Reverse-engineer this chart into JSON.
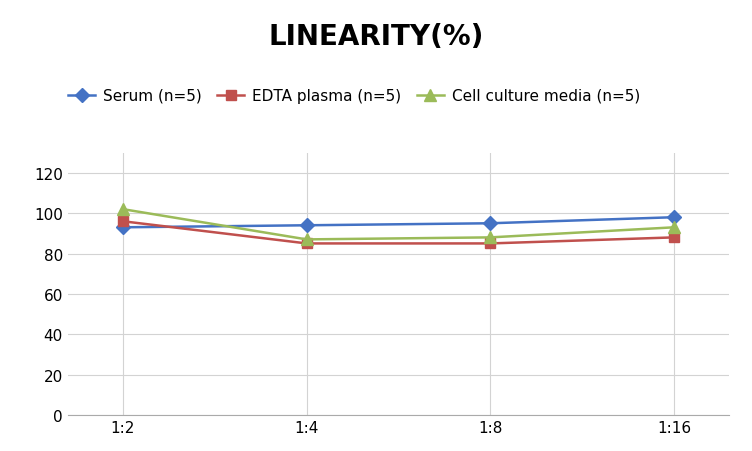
{
  "title": "LINEARITY(%)",
  "x_labels": [
    "1:2",
    "1:4",
    "1:8",
    "1:16"
  ],
  "x_positions": [
    0,
    1,
    2,
    3
  ],
  "series": [
    {
      "label": "Serum (n=5)",
      "values": [
        93,
        94,
        95,
        98
      ],
      "color": "#4472C4",
      "marker": "D",
      "marker_size": 7,
      "linewidth": 1.8
    },
    {
      "label": "EDTA plasma (n=5)",
      "values": [
        96,
        85,
        85,
        88
      ],
      "color": "#C0504D",
      "marker": "s",
      "marker_size": 7,
      "linewidth": 1.8
    },
    {
      "label": "Cell culture media (n=5)",
      "values": [
        102,
        87,
        88,
        93
      ],
      "color": "#9BBB59",
      "marker": "^",
      "marker_size": 8,
      "linewidth": 1.8
    }
  ],
  "ylim": [
    0,
    130
  ],
  "yticks": [
    0,
    20,
    40,
    60,
    80,
    100,
    120
  ],
  "background_color": "#ffffff",
  "grid_color": "#d3d3d3",
  "title_fontsize": 20,
  "tick_fontsize": 11,
  "legend_fontsize": 11
}
